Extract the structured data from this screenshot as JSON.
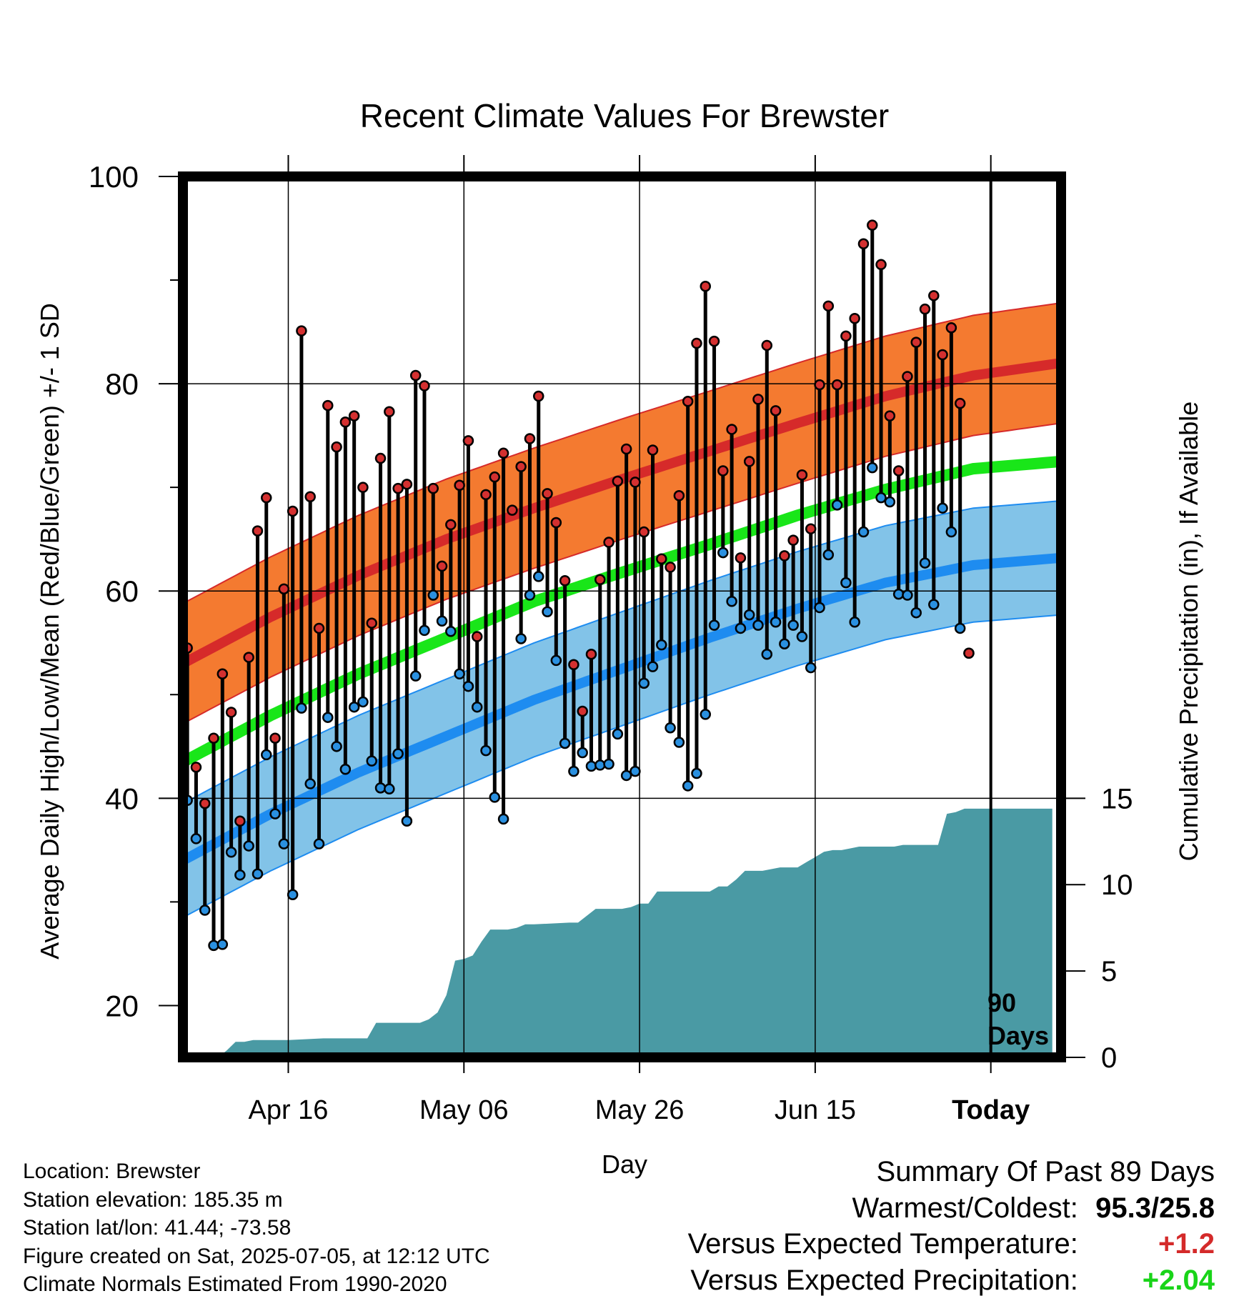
{
  "chart_data": {
    "type": "line",
    "title": "Recent Climate Values For Brewster",
    "xlabel": "Day",
    "ylabel": "Average Daily High/Low/Mean (Red/Blue/Green) +/- 1 SD",
    "y2label": "Cumulative Precipitation (in), If Available",
    "ylim": [
      15,
      100
    ],
    "y2lim": [
      0,
      15
    ],
    "x_ticks": [
      "Apr 16",
      "May 06",
      "May 26",
      "Jun 15",
      "Today"
    ],
    "x_tick_days": [
      12,
      32,
      52,
      72,
      92
    ],
    "y_ticks": [
      20,
      40,
      60,
      80,
      100
    ],
    "y2_ticks": [
      0,
      5,
      10,
      15
    ],
    "today_marker_day": 92,
    "today_marker_label": "90 Days",
    "grid": true,
    "colors": {
      "high_band": "#f47a30",
      "high_mean": "#d62a2a",
      "low_band": "#82c3e8",
      "low_mean": "#1e8cf0",
      "mean": "#19e619",
      "precip": "#4a9aa4",
      "high_dot": "#d43030",
      "low_dot": "#2a90e0"
    },
    "normals": {
      "days": [
        0,
        10,
        20,
        30,
        40,
        50,
        60,
        70,
        80,
        90,
        100
      ],
      "high_mean": [
        53,
        57.5,
        61.5,
        65,
        68,
        70.8,
        73.5,
        76.2,
        78.8,
        80.8,
        82
      ],
      "high_sd": 5.8,
      "low_mean": [
        34,
        38.5,
        42.5,
        46,
        49.5,
        52.5,
        55.5,
        58.3,
        60.8,
        62.5,
        63.2
      ],
      "low_sd": 5.5,
      "mean": [
        43.5,
        48,
        52,
        55.5,
        59,
        61.8,
        64.5,
        67.3,
        69.8,
        71.8,
        72.5
      ]
    },
    "series": [
      {
        "name": "Daily High",
        "x": [
          0,
          1,
          2,
          3,
          4,
          5,
          6,
          7,
          8,
          9,
          10,
          11,
          12,
          13,
          14,
          15,
          16,
          17,
          18,
          19,
          20,
          21,
          22,
          23,
          24,
          25,
          26,
          27,
          28,
          29,
          30,
          31,
          32,
          33,
          34,
          35,
          36,
          37,
          38,
          39,
          40,
          41,
          42,
          43,
          44,
          45,
          46,
          47,
          48,
          49,
          50,
          51,
          52,
          53,
          54,
          55,
          56,
          57,
          58,
          59,
          60,
          61,
          62,
          63,
          64,
          65,
          66,
          67,
          68,
          69,
          70,
          71,
          72,
          73,
          74,
          75,
          76,
          77,
          78,
          79,
          80,
          81,
          82,
          83,
          84,
          85,
          86,
          87,
          88,
          89
        ],
        "values": [
          54.5,
          43,
          39.5,
          45.8,
          52,
          48.3,
          37.8,
          53.6,
          65.8,
          69,
          45.8,
          60.2,
          67.7,
          85.1,
          69.1,
          56.4,
          77.9,
          73.9,
          76.3,
          76.9,
          70,
          56.9,
          72.8,
          77.3,
          69.9,
          70.3,
          80.8,
          79.8,
          69.9,
          62.4,
          66.4,
          70.2,
          74.5,
          55.6,
          69.3,
          71,
          73.3,
          67.8,
          72,
          74.7,
          78.8,
          69.4,
          66.6,
          61,
          52.9,
          48.4,
          53.9,
          61.1,
          64.7,
          70.6,
          73.7,
          70.5,
          65.7,
          73.6,
          63.1,
          62.3,
          69.2,
          78.3,
          83.9,
          89.4,
          84.1,
          71.6,
          75.6,
          63.2,
          72.5,
          78.5,
          83.7,
          77.4,
          63.4,
          64.9,
          71.2,
          66,
          79.9,
          87.5,
          79.9,
          84.6,
          86.3,
          93.5,
          95.3,
          91.5,
          76.9,
          71.6,
          80.7,
          84,
          87.2,
          88.5,
          82.8,
          85.4,
          78.1,
          54
        ]
      },
      {
        "name": "Daily Low",
        "x": [
          0,
          1,
          2,
          3,
          4,
          5,
          6,
          7,
          8,
          9,
          10,
          11,
          12,
          13,
          14,
          15,
          16,
          17,
          18,
          19,
          20,
          21,
          22,
          23,
          24,
          25,
          26,
          27,
          28,
          29,
          30,
          31,
          32,
          33,
          34,
          35,
          36,
          37,
          38,
          39,
          40,
          41,
          42,
          43,
          44,
          45,
          46,
          47,
          48,
          49,
          50,
          51,
          52,
          53,
          54,
          55,
          56,
          57,
          58,
          59,
          60,
          61,
          62,
          63,
          64,
          65,
          66,
          67,
          68,
          69,
          70,
          71,
          72,
          73,
          74,
          75,
          76,
          77,
          78,
          79,
          80,
          81,
          82,
          83,
          84,
          85,
          86,
          87,
          88,
          89
        ],
        "values": [
          39.8,
          36.1,
          29.2,
          25.8,
          25.9,
          34.8,
          32.6,
          35.4,
          32.7,
          44.2,
          38.5,
          35.6,
          30.7,
          48.7,
          41.4,
          35.6,
          47.8,
          45,
          42.8,
          48.8,
          49.3,
          43.6,
          41,
          40.9,
          44.3,
          37.8,
          51.8,
          56.2,
          59.6,
          57.1,
          56.1,
          52,
          50.8,
          48.8,
          44.6,
          40.1,
          38,
          null,
          55.4,
          59.6,
          61.4,
          58,
          53.3,
          45.3,
          42.6,
          44.4,
          43.1,
          43.2,
          43.3,
          46.2,
          42.2,
          42.6,
          51.1,
          52.7,
          54.8,
          46.8,
          45.4,
          41.2,
          42.4,
          48.1,
          56.7,
          63.7,
          59,
          56.4,
          57.7,
          56.7,
          53.9,
          57,
          54.9,
          56.7,
          55.6,
          52.6,
          58.4,
          63.5,
          68.3,
          60.8,
          57,
          65.7,
          71.9,
          69,
          68.6,
          59.7,
          59.6,
          57.9,
          62.7,
          58.7,
          68,
          65.7,
          56.4,
          54
        ]
      }
    ],
    "precip": {
      "days": [
        0,
        4,
        5,
        6,
        7,
        8,
        9,
        12,
        16,
        17,
        20,
        21,
        22,
        24,
        25,
        26,
        27,
        28,
        29,
        30,
        31,
        32,
        33,
        34,
        35,
        36,
        37,
        38,
        39,
        40,
        44,
        45,
        46,
        47,
        48,
        50,
        51,
        52,
        53,
        54,
        55,
        56,
        57,
        60,
        61,
        62,
        63,
        64,
        65,
        66,
        67,
        68,
        69,
        70,
        71,
        72,
        73,
        74,
        75,
        76,
        77,
        78,
        81,
        82,
        83,
        84,
        85,
        86,
        87,
        88,
        89,
        90,
        91,
        92,
        99
      ],
      "cumulative": [
        0,
        0,
        0.4,
        0.9,
        0.9,
        1,
        1,
        1,
        1.1,
        1.1,
        1.1,
        1.1,
        2,
        2,
        2,
        2,
        2,
        2.2,
        2.6,
        3.6,
        5.6,
        5.7,
        5.9,
        6.7,
        7.4,
        7.4,
        7.4,
        7.5,
        7.7,
        7.7,
        7.8,
        7.8,
        8.2,
        8.6,
        8.6,
        8.6,
        8.7,
        8.9,
        8.9,
        9.6,
        9.6,
        9.6,
        9.6,
        9.6,
        9.9,
        9.9,
        10.3,
        10.8,
        10.8,
        10.8,
        10.9,
        11,
        11,
        11,
        11.3,
        11.6,
        11.9,
        12,
        12,
        12.1,
        12.2,
        12.2,
        12.2,
        12.3,
        12.3,
        12.3,
        12.3,
        12.3,
        14.1,
        14.2,
        14.4,
        14.4,
        14.4,
        14.4,
        14.4
      ]
    }
  },
  "footer": {
    "location": "Location: Brewster",
    "elevation": "Station elevation: 185.35 m",
    "latlon": "Station lat/lon: 41.44; -73.58",
    "created": "Figure created on Sat, 2025-07-05, at 12:12 UTC",
    "normals_note": "Climate Normals Estimated From 1990-2020"
  },
  "summary": {
    "heading": "Summary Of Past 89 Days",
    "warm_cold_label": "Warmest/Coldest:",
    "warm_cold_value": "95.3/25.8",
    "temp_label": "Versus Expected Temperature:",
    "temp_value": "+1.2",
    "precip_label": "Versus Expected Precipitation:",
    "precip_value": "+2.04"
  }
}
